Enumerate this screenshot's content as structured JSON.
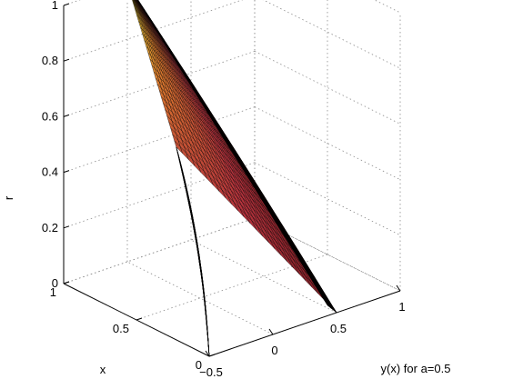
{
  "chart_data": {
    "type": "surface",
    "xlabel": "x",
    "ylabel": "y(x) for a=0.5",
    "zlabel": "r",
    "xlim": [
      0,
      1
    ],
    "ylim": [
      -0.5,
      1
    ],
    "zlim": [
      0,
      1
    ],
    "x_ticks": [
      "0",
      "0.5",
      "1"
    ],
    "y_ticks": [
      "−0.5",
      "0",
      "0.5",
      "1"
    ],
    "z_ticks": [
      "0",
      "0.2",
      "0.4",
      "0.6",
      "0.8",
      "1"
    ],
    "grid": true,
    "colormap": [
      "#000000",
      "#5a0f14",
      "#b4323c",
      "#d9782d",
      "#f5ec3c"
    ],
    "surface": {
      "description_points": [
        {
          "x": 0,
          "y": -0.5,
          "r": 0
        },
        {
          "x": 0,
          "y": 0.5,
          "r": 0
        },
        {
          "x": 1,
          "y": 0,
          "r": 1
        }
      ]
    }
  }
}
